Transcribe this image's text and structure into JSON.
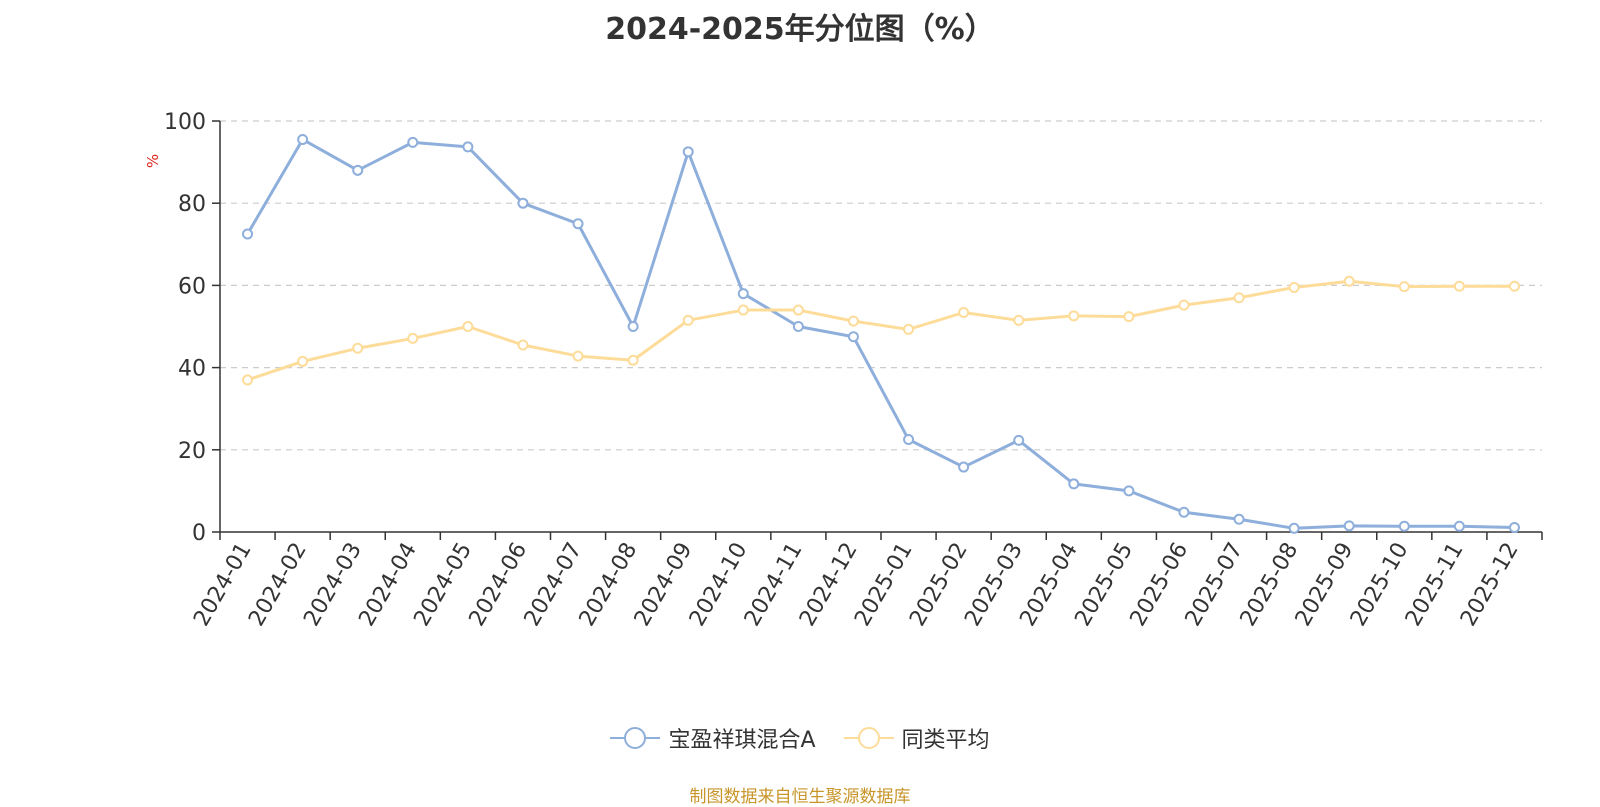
{
  "chart_data": {
    "type": "line",
    "title": "2024-2025年分位图（%）",
    "ylabel": "%",
    "ylim": [
      0,
      100
    ],
    "yticks": [
      0,
      20,
      40,
      60,
      80,
      100
    ],
    "grid": true,
    "legend_position": "bottom",
    "categories": [
      "2024-01",
      "2024-02",
      "2024-03",
      "2024-04",
      "2024-05",
      "2024-06",
      "2024-07",
      "2024-08",
      "2024-09",
      "2024-10",
      "2024-11",
      "2024-12",
      "2025-01",
      "2025-02",
      "2025-03",
      "2025-04",
      "2025-05",
      "2025-06",
      "2025-07",
      "2025-08",
      "2025-09",
      "2025-10",
      "2025-11",
      "2025-12"
    ],
    "series": [
      {
        "name": "宝盈祥琪混合A",
        "color": "#8eaedb",
        "values": [
          72.5,
          95.5,
          88,
          94.8,
          93.7,
          80,
          75,
          50,
          92.5,
          58,
          50,
          47.5,
          22.5,
          15.8,
          22.3,
          11.7,
          10,
          4.8,
          3.1,
          0.9,
          1.5,
          1.4,
          1.4,
          1.1
        ]
      },
      {
        "name": "同类平均",
        "color": "#fddc9a",
        "values": [
          37,
          41.5,
          44.7,
          47.1,
          50,
          45.5,
          42.8,
          41.8,
          51.5,
          54,
          54,
          51.3,
          49.3,
          53.4,
          51.5,
          52.6,
          52.4,
          55.2,
          57,
          59.5,
          61,
          59.7,
          59.8,
          59.8
        ]
      }
    ]
  },
  "source_note": "制图数据来自恒生聚源数据库"
}
